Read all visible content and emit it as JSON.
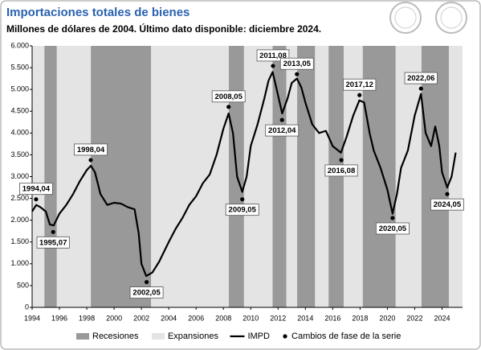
{
  "chart_data": {
    "type": "line",
    "title": "Importaciones totales de bienes",
    "subtitle": "Millones de dólares de 2004. Último dato disponible: diciembre 2024.",
    "x": [
      1994.0,
      1994.3,
      1994.6,
      1995.0,
      1995.3,
      1995.58,
      1996.0,
      1996.5,
      1997.0,
      1997.5,
      1998.0,
      1998.3,
      1998.6,
      1999.0,
      1999.5,
      2000.0,
      2000.5,
      2001.0,
      2001.5,
      2001.8,
      2002.0,
      2002.35,
      2002.8,
      2003.3,
      2004.0,
      2004.5,
      2005.0,
      2005.5,
      2006.0,
      2006.5,
      2007.0,
      2007.5,
      2008.0,
      2008.38,
      2008.7,
      2009.0,
      2009.38,
      2009.7,
      2010.0,
      2010.5,
      2011.0,
      2011.3,
      2011.6,
      2011.9,
      2012.3,
      2012.7,
      2013.0,
      2013.38,
      2013.7,
      2014.0,
      2014.5,
      2015.0,
      2015.5,
      2016.0,
      2016.6,
      2017.0,
      2017.5,
      2017.95,
      2018.3,
      2018.7,
      2019.0,
      2019.5,
      2020.0,
      2020.38,
      2020.7,
      2021.0,
      2021.5,
      2022.0,
      2022.46,
      2022.8,
      2023.2,
      2023.5,
      2023.8,
      2024.0,
      2024.38,
      2024.7,
      2025.0
    ],
    "series": [
      {
        "name": "IMPD",
        "color": "#000000",
        "values": [
          2200,
          2350,
          2300,
          2200,
          1900,
          1880,
          2150,
          2350,
          2600,
          2900,
          3150,
          3250,
          3100,
          2600,
          2350,
          2400,
          2380,
          2300,
          2250,
          1700,
          1000,
          720,
          800,
          1050,
          1500,
          1800,
          2050,
          2350,
          2550,
          2850,
          3050,
          3500,
          4100,
          4450,
          4000,
          3000,
          2650,
          3000,
          3700,
          4200,
          4800,
          5200,
          5400,
          5000,
          4450,
          4800,
          5150,
          5250,
          5050,
          4700,
          4200,
          4000,
          4050,
          3700,
          3550,
          3900,
          4400,
          4750,
          4700,
          4000,
          3600,
          3200,
          2700,
          2150,
          2600,
          3200,
          3600,
          4400,
          4900,
          4000,
          3700,
          4150,
          3700,
          3100,
          2750,
          3000,
          3550
        ]
      }
    ],
    "phase_changes": {
      "name": "Cambios de fase de la serie",
      "color": "#000000",
      "points": [
        {
          "label": "1994,04",
          "x": 1994.29,
          "y": 2480
        },
        {
          "label": "1995,07",
          "x": 1995.54,
          "y": 1730
        },
        {
          "label": "1998,04",
          "x": 1998.29,
          "y": 3380
        },
        {
          "label": "2002,05",
          "x": 2002.38,
          "y": 580
        },
        {
          "label": "2008,05",
          "x": 2008.38,
          "y": 4600
        },
        {
          "label": "2009,05",
          "x": 2009.38,
          "y": 2480
        },
        {
          "label": "2011,08",
          "x": 2011.63,
          "y": 5540
        },
        {
          "label": "2012,04",
          "x": 2012.29,
          "y": 4300
        },
        {
          "label": "2013,05",
          "x": 2013.38,
          "y": 5350
        },
        {
          "label": "2016,08",
          "x": 2016.63,
          "y": 3380
        },
        {
          "label": "2017,12",
          "x": 2017.96,
          "y": 4870
        },
        {
          "label": "2020,05",
          "x": 2020.38,
          "y": 2050
        },
        {
          "label": "2022,06",
          "x": 2022.46,
          "y": 5020
        },
        {
          "label": "2024,05",
          "x": 2024.38,
          "y": 2600
        }
      ]
    },
    "recessions": {
      "name": "Recesiones",
      "color": "#999999",
      "spans": [
        [
          1994.9,
          1995.8
        ],
        [
          1998.3,
          2002.7
        ],
        [
          2008.4,
          2009.5
        ],
        [
          2011.6,
          2012.6
        ],
        [
          2013.4,
          2014.7
        ],
        [
          2015.7,
          2016.8
        ],
        [
          2018.2,
          2020.6
        ],
        [
          2022.5,
          2024.5
        ]
      ]
    },
    "expansions": {
      "name": "Expansiones",
      "color": "#e4e4e4"
    },
    "xlim": [
      1994,
      2025.5
    ],
    "ylim": [
      0,
      6000
    ],
    "xticks": [
      1994,
      1996,
      1998,
      2000,
      2002,
      2004,
      2006,
      2008,
      2010,
      2012,
      2014,
      2016,
      2018,
      2020,
      2022,
      2024
    ],
    "yticks": [
      0,
      500,
      {
        "value": 1000,
        "label": "1.000"
      },
      {
        "value": 1500,
        "label": "1.500"
      },
      {
        "value": 2000,
        "label": "2.000"
      },
      {
        "value": 2500,
        "label": "2.500"
      },
      {
        "value": 3000,
        "label": "3.000"
      },
      {
        "value": 3500,
        "label": "3.500"
      },
      {
        "value": 4000,
        "label": "4.000"
      },
      {
        "value": 4500,
        "label": "4.500"
      },
      {
        "value": 5000,
        "label": "5.000"
      },
      {
        "value": 5500,
        "label": "5.500"
      },
      {
        "value": 6000,
        "label": "6.000"
      }
    ],
    "grid": false
  }
}
